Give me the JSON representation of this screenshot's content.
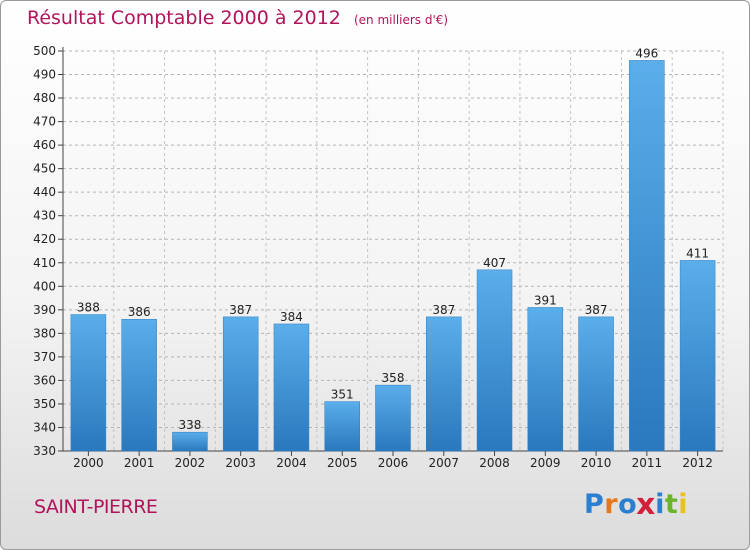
{
  "chart_data": {
    "type": "bar",
    "title": "Résultat Comptable 2000 à 2012",
    "unit": "(en milliers d'€)",
    "categories": [
      "2000",
      "2001",
      "2002",
      "2003",
      "2004",
      "2005",
      "2006",
      "2007",
      "2008",
      "2009",
      "2010",
      "2011",
      "2012"
    ],
    "values": [
      388,
      386,
      338,
      387,
      384,
      351,
      358,
      387,
      407,
      391,
      387,
      496,
      411
    ],
    "yticks": [
      330,
      340,
      350,
      360,
      370,
      380,
      390,
      400,
      410,
      420,
      430,
      440,
      450,
      460,
      470,
      480,
      490,
      500
    ],
    "ylim": [
      330,
      500
    ],
    "grid": true,
    "bar_color": "#4a9ee0"
  },
  "footer": {
    "commune": "SAINT-PIERRE",
    "logo_letters": [
      "P",
      "r",
      "o",
      "x",
      "i",
      "t",
      "i"
    ],
    "logo_colors": [
      "#2a7fd0",
      "#e8771a",
      "#2a7fd0",
      "#d21f3a",
      "#2a7fd0",
      "#6bb52b",
      "#e8c31a"
    ]
  }
}
